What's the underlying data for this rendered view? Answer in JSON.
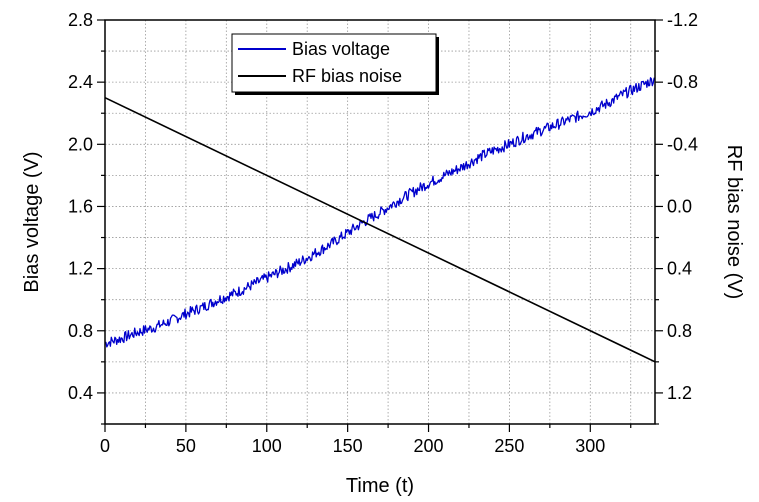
{
  "chart_data": {
    "type": "line",
    "xlabel": "Time (t)",
    "ylabel": "Bias voltage (V)",
    "y2label": "RF bias noise (V)",
    "xlim": [
      0,
      340
    ],
    "ylim": [
      0.2,
      2.8
    ],
    "y2lim": [
      1.4,
      -1.2
    ],
    "y2_inverted": true,
    "xticks": [
      0,
      50,
      100,
      150,
      200,
      250,
      300
    ],
    "yticks": [
      0.4,
      0.8,
      1.2,
      1.6,
      2.0,
      2.4,
      2.8
    ],
    "ytick_labels": [
      "0.4",
      "0.8",
      "1.2",
      "1.6",
      "2.0",
      "2.4",
      "2.8"
    ],
    "y2ticks": [
      1.2,
      0.8,
      0.4,
      0.0,
      -0.4,
      -0.8,
      -1.2
    ],
    "y2tick_labels": [
      "1.2",
      "0.8",
      "0.4",
      "0.0",
      "-0.4",
      "-0.8",
      "-1.2"
    ],
    "grid": true,
    "legend_position": "top-center",
    "series": [
      {
        "name": "Bias voltage",
        "axis": "left",
        "color": "#0000cc",
        "style": "noisy",
        "x": [
          0,
          10,
          20,
          30,
          40,
          50,
          60,
          70,
          80,
          90,
          100,
          110,
          120,
          130,
          140,
          150,
          160,
          170,
          180,
          190,
          200,
          210,
          220,
          230,
          240,
          250,
          260,
          270,
          280,
          290,
          300,
          310,
          320,
          330,
          340
        ],
        "y": [
          0.72,
          0.75,
          0.79,
          0.82,
          0.86,
          0.91,
          0.95,
          1.0,
          1.04,
          1.09,
          1.14,
          1.19,
          1.24,
          1.3,
          1.36,
          1.43,
          1.5,
          1.56,
          1.63,
          1.69,
          1.75,
          1.8,
          1.85,
          1.91,
          1.96,
          2.0,
          2.05,
          2.09,
          2.13,
          2.17,
          2.21,
          2.26,
          2.32,
          2.37,
          2.42
        ]
      },
      {
        "name": "RF bias noise",
        "axis": "right",
        "color": "#000000",
        "style": "straight",
        "x": [
          0,
          340
        ],
        "y": [
          -0.7,
          1.0
        ]
      }
    ]
  }
}
